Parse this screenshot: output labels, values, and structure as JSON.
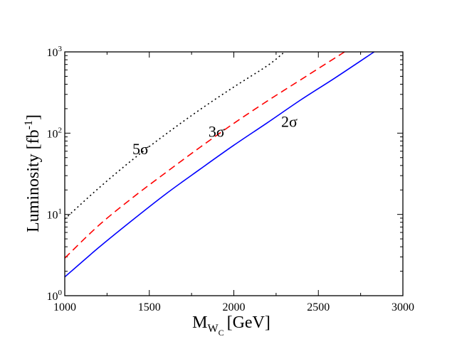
{
  "chart_data": {
    "type": "line",
    "title": "",
    "xlabel": {
      "main": "M",
      "sub": "W",
      "subsub": "C",
      "unit": "[GeV]"
    },
    "ylabel": {
      "main": "Luminosity [fb",
      "sup": "-1",
      "close": "]"
    },
    "xlim": [
      1000,
      3000
    ],
    "ylim": [
      1,
      1000
    ],
    "yscale": "log",
    "x_ticks": [
      1000,
      1500,
      2000,
      2500,
      3000
    ],
    "x_tick_labels": [
      "1000",
      "1500",
      "2000",
      "2500",
      "3000"
    ],
    "y_ticks": [
      1,
      10,
      100,
      1000
    ],
    "y_tick_labels": [
      {
        "base": "10",
        "exp": "0"
      },
      {
        "base": "10",
        "exp": "1"
      },
      {
        "base": "10",
        "exp": "2"
      },
      {
        "base": "10",
        "exp": "3"
      }
    ],
    "series": [
      {
        "name": "2σ",
        "label": "2σ",
        "color": "#0000ff",
        "dash": "solid",
        "x": [
          1000,
          1200,
          1400,
          1600,
          1800,
          2000,
          2200,
          2400,
          2600,
          2830
        ],
        "y": [
          1.7,
          3.9,
          8.5,
          18,
          36,
          71,
          135,
          260,
          480,
          1000
        ]
      },
      {
        "name": "3σ",
        "label": "3σ",
        "color": "#ff0000",
        "dash": "dashed",
        "x": [
          1000,
          1200,
          1400,
          1600,
          1800,
          2000,
          2200,
          2400,
          2655
        ],
        "y": [
          2.9,
          7.3,
          16,
          33,
          67,
          132,
          250,
          460,
          1000
        ]
      },
      {
        "name": "5σ",
        "label": "5σ",
        "color": "#000000",
        "dash": "dotted",
        "x": [
          1000,
          1200,
          1400,
          1600,
          1800,
          2000,
          2200,
          2300
        ],
        "y": [
          8.8,
          21,
          47,
          98,
          195,
          370,
          680,
          1000
        ]
      }
    ],
    "annotations": [
      {
        "text": "5σ",
        "x": 1400,
        "y": 55
      },
      {
        "text": "3σ",
        "x": 1850,
        "y": 90
      },
      {
        "text": "2σ",
        "x": 2280,
        "y": 120
      }
    ]
  }
}
